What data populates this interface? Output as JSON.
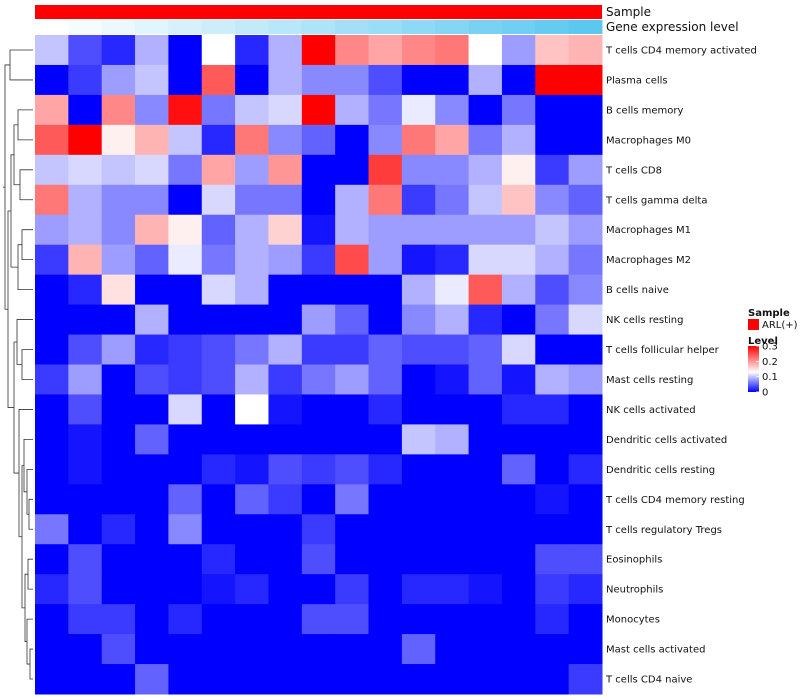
{
  "chart_data": {
    "type": "heatmap",
    "title": "",
    "column_annotations": [
      {
        "name": "Sample",
        "legend_title": "Sample",
        "legend_entry": "ARL(+)",
        "color": "#ff0000"
      },
      {
        "name": "Gene expression level"
      }
    ],
    "expression_gradient": [
      "#ffffff",
      "#5bc8f0"
    ],
    "color_scale": {
      "title": "Level",
      "min": 0,
      "max": 0.3,
      "ticks": [
        0.3,
        0.2,
        0.1,
        0
      ],
      "colors": {
        "low": "#0000ff",
        "mid": "#ffffff",
        "high": "#ff0000"
      },
      "mid_value": 0.13
    },
    "rows": [
      "T cells CD4 memory activated",
      "Plasma cells",
      "B cells memory",
      "Macrophages M0",
      "T cells CD8",
      "T cells gamma delta",
      "Macrophages M1",
      "Macrophages M2",
      "B cells naive",
      "NK cells resting",
      "T cells follicular helper",
      "Mast cells resting",
      "NK cells activated",
      "Dendritic cells activated",
      "Dendritic cells resting",
      "T cells CD4 memory resting",
      "T cells regulatory  Tregs",
      "Eosinophils",
      "Neutrophils",
      "Monocytes",
      "Mast cells activated",
      "T cells CD4 naive"
    ],
    "values": [
      [
        0.1,
        0.04,
        0.02,
        0.09,
        0.0,
        0.13,
        0.02,
        0.09,
        0.3,
        0.21,
        0.19,
        0.21,
        0.22,
        0.13,
        0.08,
        0.17,
        0.18
      ],
      [
        0.0,
        0.03,
        0.08,
        0.1,
        0.0,
        0.24,
        0.0,
        0.09,
        0.07,
        0.07,
        0.04,
        0.0,
        0.0,
        0.09,
        0.0,
        0.3,
        0.3
      ],
      [
        0.19,
        0.0,
        0.21,
        0.07,
        0.29,
        0.06,
        0.1,
        0.11,
        0.3,
        0.09,
        0.06,
        0.12,
        0.07,
        0.0,
        0.06,
        0.0,
        0.0
      ],
      [
        0.24,
        0.3,
        0.14,
        0.18,
        0.1,
        0.02,
        0.22,
        0.07,
        0.05,
        0.0,
        0.07,
        0.22,
        0.19,
        0.06,
        0.09,
        0.0,
        0.0
      ],
      [
        0.1,
        0.11,
        0.1,
        0.11,
        0.06,
        0.19,
        0.08,
        0.2,
        0.0,
        0.0,
        0.26,
        0.07,
        0.07,
        0.09,
        0.14,
        0.03,
        0.08
      ],
      [
        0.22,
        0.09,
        0.07,
        0.07,
        0.0,
        0.11,
        0.06,
        0.06,
        0.0,
        0.09,
        0.22,
        0.03,
        0.06,
        0.1,
        0.17,
        0.07,
        0.05
      ],
      [
        0.08,
        0.09,
        0.07,
        0.18,
        0.14,
        0.05,
        0.09,
        0.16,
        0.01,
        0.09,
        0.08,
        0.08,
        0.08,
        0.08,
        0.08,
        0.1,
        0.08
      ],
      [
        0.03,
        0.18,
        0.08,
        0.05,
        0.12,
        0.06,
        0.09,
        0.08,
        0.03,
        0.25,
        0.08,
        0.01,
        0.02,
        0.11,
        0.11,
        0.09,
        0.06
      ],
      [
        0.0,
        0.02,
        0.15,
        0.0,
        0.0,
        0.11,
        0.09,
        0.0,
        0.0,
        0.0,
        0.0,
        0.09,
        0.12,
        0.24,
        0.09,
        0.04,
        0.07
      ],
      [
        0.0,
        0.0,
        0.0,
        0.09,
        0.0,
        0.0,
        0.0,
        0.0,
        0.08,
        0.05,
        0.0,
        0.07,
        0.09,
        0.02,
        0.0,
        0.06,
        0.11
      ],
      [
        0.0,
        0.04,
        0.08,
        0.02,
        0.03,
        0.04,
        0.06,
        0.09,
        0.03,
        0.03,
        0.05,
        0.04,
        0.04,
        0.05,
        0.11,
        0.0,
        0.0
      ],
      [
        0.03,
        0.08,
        0.0,
        0.04,
        0.03,
        0.04,
        0.09,
        0.03,
        0.06,
        0.08,
        0.05,
        0.0,
        0.01,
        0.05,
        0.01,
        0.09,
        0.08
      ],
      [
        0.0,
        0.04,
        0.0,
        0.0,
        0.11,
        0.0,
        0.13,
        0.01,
        0.0,
        0.0,
        0.02,
        0.0,
        0.0,
        0.0,
        0.02,
        0.02,
        0.0
      ],
      [
        0.0,
        0.01,
        0.0,
        0.05,
        0.0,
        0.0,
        0.0,
        0.0,
        0.0,
        0.0,
        0.0,
        0.1,
        0.09,
        0.0,
        0.0,
        0.0,
        0.0
      ],
      [
        0.0,
        0.01,
        0.0,
        0.0,
        0.0,
        0.02,
        0.01,
        0.04,
        0.03,
        0.04,
        0.02,
        0.0,
        0.0,
        0.0,
        0.05,
        0.0,
        0.02
      ],
      [
        0.0,
        0.0,
        0.0,
        0.0,
        0.05,
        0.0,
        0.05,
        0.03,
        0.0,
        0.06,
        0.0,
        0.0,
        0.0,
        0.0,
        0.0,
        0.01,
        0.0
      ],
      [
        0.06,
        0.0,
        0.02,
        0.0,
        0.07,
        0.0,
        0.0,
        0.0,
        0.03,
        0.0,
        0.0,
        0.0,
        0.0,
        0.0,
        0.0,
        0.0,
        0.0
      ],
      [
        0.0,
        0.04,
        0.0,
        0.0,
        0.0,
        0.02,
        0.0,
        0.0,
        0.04,
        0.0,
        0.0,
        0.0,
        0.0,
        0.0,
        0.0,
        0.04,
        0.04
      ],
      [
        0.02,
        0.04,
        0.0,
        0.0,
        0.0,
        0.01,
        0.02,
        0.0,
        0.0,
        0.03,
        0.0,
        0.02,
        0.02,
        0.01,
        0.0,
        0.03,
        0.02
      ],
      [
        0.0,
        0.03,
        0.03,
        0.0,
        0.02,
        0.0,
        0.0,
        0.0,
        0.04,
        0.04,
        0.0,
        0.0,
        0.0,
        0.0,
        0.0,
        0.02,
        0.0
      ],
      [
        0.0,
        0.0,
        0.04,
        0.0,
        0.0,
        0.0,
        0.0,
        0.0,
        0.0,
        0.0,
        0.0,
        0.05,
        0.0,
        0.0,
        0.0,
        0.0,
        0.0
      ],
      [
        0.0,
        0.0,
        0.0,
        0.05,
        0.0,
        0.0,
        0.0,
        0.0,
        0.0,
        0.0,
        0.0,
        0.0,
        0.0,
        0.0,
        0.0,
        0.0,
        0.03
      ]
    ]
  }
}
